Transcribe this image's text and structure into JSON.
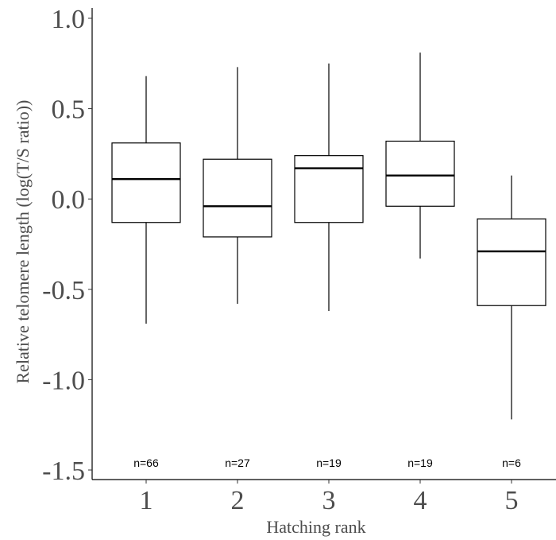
{
  "chart_data": {
    "type": "box",
    "xlabel": "Hatching rank",
    "ylabel": "Relative telomere length (log(T/S ratio))",
    "ylim": [
      -1.55,
      1.05
    ],
    "y_ticks": [
      {
        "value": 1.0,
        "label": "1.0"
      },
      {
        "value": 0.5,
        "label": "0.5"
      },
      {
        "value": 0.0,
        "label": "0.0"
      },
      {
        "value": -0.5,
        "label": "-0.5"
      },
      {
        "value": -1.0,
        "label": "-1.0"
      },
      {
        "value": -1.5,
        "label": "-1.5"
      }
    ],
    "grid": false,
    "categories": [
      "1",
      "2",
      "3",
      "4",
      "5"
    ],
    "boxes": [
      {
        "category": "1",
        "min": -0.69,
        "q1": -0.13,
        "median": 0.11,
        "q3": 0.31,
        "max": 0.68,
        "n_label": "n=66"
      },
      {
        "category": "2",
        "min": -0.58,
        "q1": -0.21,
        "median": -0.04,
        "q3": 0.22,
        "max": 0.73,
        "n_label": "n=27"
      },
      {
        "category": "3",
        "min": -0.62,
        "q1": -0.13,
        "median": 0.17,
        "q3": 0.24,
        "max": 0.75,
        "n_label": "n=19"
      },
      {
        "category": "4",
        "min": -0.33,
        "q1": -0.04,
        "median": 0.13,
        "q3": 0.32,
        "max": 0.81,
        "n_label": "n=19"
      },
      {
        "category": "5",
        "min": -1.22,
        "q1": -0.59,
        "median": -0.29,
        "q3": -0.11,
        "max": 0.13,
        "n_label": "n=6"
      }
    ],
    "n_label_y": -1.46
  }
}
